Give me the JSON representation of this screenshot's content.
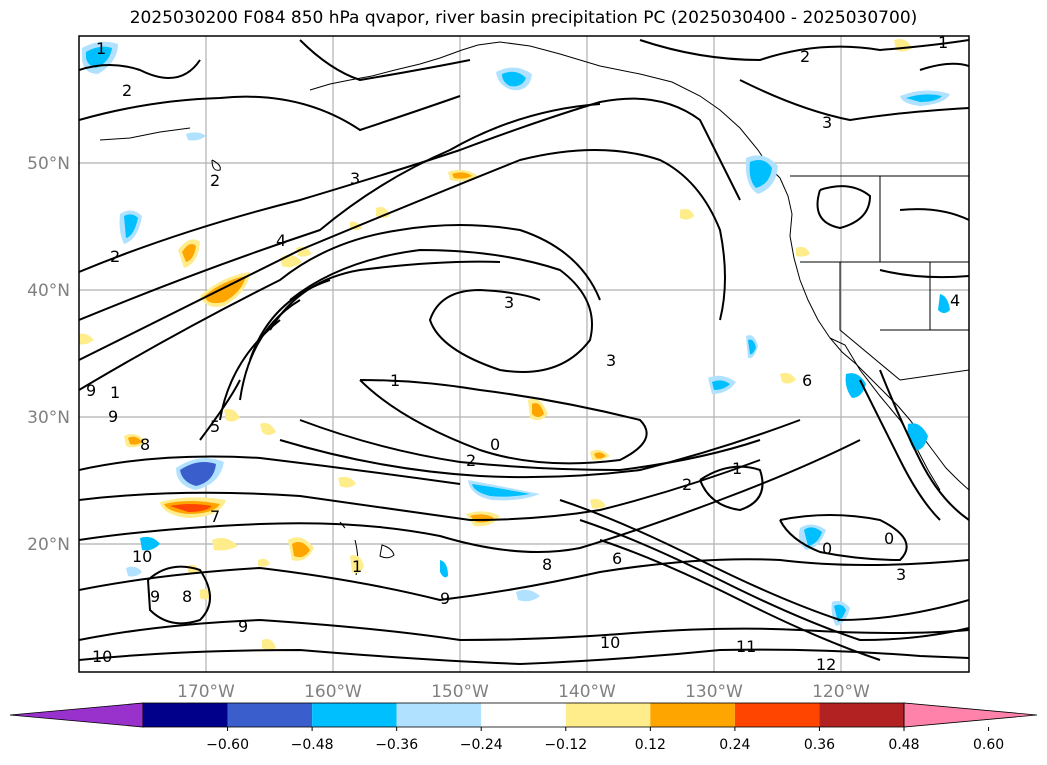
{
  "title": "2025030200 F084 850 hPa qvapor, river basin precipitation PC (2025030400 - 2025030700)",
  "map": {
    "lat_labels": [
      "50°N",
      "40°N",
      "30°N",
      "20°N"
    ],
    "lon_labels": [
      "170°W",
      "160°W",
      "150°W",
      "140°W",
      "130°W",
      "120°W"
    ],
    "contour_labels": [
      {
        "text": "1",
        "key": "a"
      },
      {
        "text": "2",
        "key": "b"
      },
      {
        "text": "2",
        "key": "c"
      },
      {
        "text": "3",
        "key": "d"
      },
      {
        "text": "1",
        "key": "e"
      },
      {
        "text": "2",
        "key": "f"
      },
      {
        "text": "2",
        "key": "g"
      },
      {
        "text": "3",
        "key": "h"
      },
      {
        "text": "4",
        "key": "i"
      },
      {
        "text": "3",
        "key": "j"
      },
      {
        "text": "3",
        "key": "k"
      },
      {
        "text": "1",
        "key": "l"
      },
      {
        "text": "0",
        "key": "m"
      },
      {
        "text": "2",
        "key": "n"
      },
      {
        "text": "5",
        "key": "o"
      },
      {
        "text": "7",
        "key": "p"
      },
      {
        "text": "9",
        "key": "q"
      },
      {
        "text": "8",
        "key": "r"
      },
      {
        "text": "9",
        "key": "s"
      },
      {
        "text": "10",
        "key": "t"
      },
      {
        "text": "9",
        "key": "u"
      },
      {
        "text": "8",
        "key": "v"
      },
      {
        "text": "9",
        "key": "w"
      },
      {
        "text": "9",
        "key": "x"
      },
      {
        "text": "10",
        "key": "y"
      },
      {
        "text": "8",
        "key": "z"
      },
      {
        "text": "6",
        "key": "aa"
      },
      {
        "text": "10",
        "key": "ab"
      },
      {
        "text": "11",
        "key": "ac"
      },
      {
        "text": "12",
        "key": "ad"
      },
      {
        "text": "2",
        "key": "ae"
      },
      {
        "text": "1",
        "key": "af"
      },
      {
        "text": "0",
        "key": "ag"
      },
      {
        "text": "0",
        "key": "ah"
      },
      {
        "text": "3",
        "key": "ai"
      },
      {
        "text": "6",
        "key": "aj"
      },
      {
        "text": "4",
        "key": "ak"
      },
      {
        "text": "1",
        "key": "al"
      },
      {
        "text": "1",
        "key": "am"
      }
    ]
  },
  "colorbar": {
    "ticks": [
      "−0.60",
      "−0.48",
      "−0.36",
      "−0.24",
      "−0.12",
      "0.12",
      "0.24",
      "0.36",
      "0.48",
      "0.60"
    ],
    "colors": [
      "#9932cc",
      "#00008b",
      "#3a5fcd",
      "#00bfff",
      "#b0e2ff",
      "#ffffff",
      "#ffec8b",
      "#ffa500",
      "#ff4500",
      "#b22222",
      "#ff82ab"
    ]
  }
}
